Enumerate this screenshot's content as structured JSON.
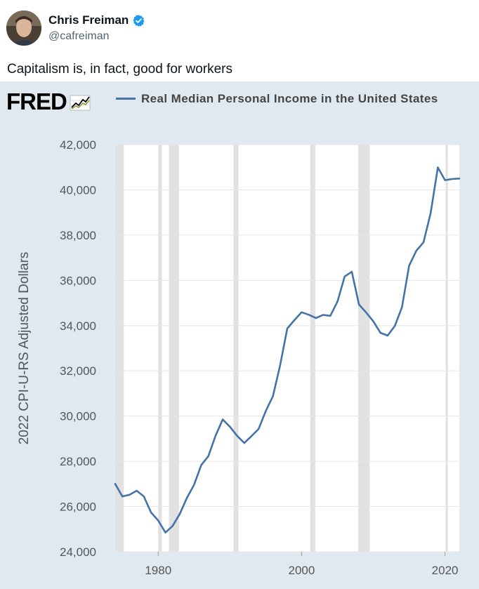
{
  "tweet": {
    "display_name": "Chris Freiman",
    "handle": "@cafreiman",
    "text": "Capitalism is, in fact, good for workers",
    "verified_icon": "verified-badge-icon",
    "colors": {
      "verified": "#1d9bf0",
      "handle": "#536471"
    }
  },
  "chart_card": {
    "brand": "FRED",
    "legend": "Real Median Personal Income in the United States",
    "colors": {
      "background": "#e1e9f0",
      "plot_background": "#ffffff",
      "line": "#4572a7",
      "recession": "#e1e1e1"
    }
  },
  "chart_data": {
    "type": "line",
    "title": "",
    "xlabel": "",
    "ylabel": "2022 CPI-U-RS Adjusted Dollars",
    "xlim": [
      1974,
      2022
    ],
    "ylim": [
      24000,
      42000
    ],
    "x_ticks": [
      1980,
      2000,
      2020
    ],
    "x_tick_labels": [
      "1980",
      "2000",
      "2020"
    ],
    "y_ticks": [
      24000,
      26000,
      28000,
      30000,
      32000,
      34000,
      36000,
      38000,
      40000,
      42000
    ],
    "y_tick_labels": [
      "24,000",
      "26,000",
      "28,000",
      "30,000",
      "32,000",
      "34,000",
      "36,000",
      "38,000",
      "40,000",
      "42,000"
    ],
    "grid": true,
    "recessions": [
      [
        1974.0,
        1975.2
      ],
      [
        1980.0,
        1980.5
      ],
      [
        1981.5,
        1982.9
      ],
      [
        1990.5,
        1991.2
      ],
      [
        2001.2,
        2001.9
      ],
      [
        2007.9,
        2009.5
      ],
      [
        2020.1,
        2020.4
      ]
    ],
    "series": [
      {
        "name": "Real Median Personal Income in the United States",
        "x": [
          1974,
          1975,
          1976,
          1977,
          1978,
          1979,
          1980,
          1981,
          1982,
          1983,
          1984,
          1985,
          1986,
          1987,
          1988,
          1989,
          1990,
          1991,
          1992,
          1993,
          1994,
          1995,
          1996,
          1997,
          1998,
          1999,
          2000,
          2001,
          2002,
          2003,
          2004,
          2005,
          2006,
          2007,
          2008,
          2009,
          2010,
          2011,
          2012,
          2013,
          2014,
          2015,
          2016,
          2017,
          2018,
          2019,
          2020,
          2021,
          2022
        ],
        "values": [
          27000,
          26450,
          26520,
          26700,
          26450,
          25740,
          25380,
          24850,
          25140,
          25670,
          26380,
          26960,
          27830,
          28230,
          29130,
          29850,
          29530,
          29130,
          28810,
          29110,
          29430,
          30220,
          30880,
          32240,
          33870,
          34240,
          34590,
          34480,
          34330,
          34470,
          34430,
          35060,
          36170,
          36380,
          34930,
          34580,
          34190,
          33680,
          33560,
          33980,
          34810,
          36650,
          37310,
          37680,
          38980,
          40990,
          40430,
          40480,
          40500
        ]
      }
    ]
  }
}
